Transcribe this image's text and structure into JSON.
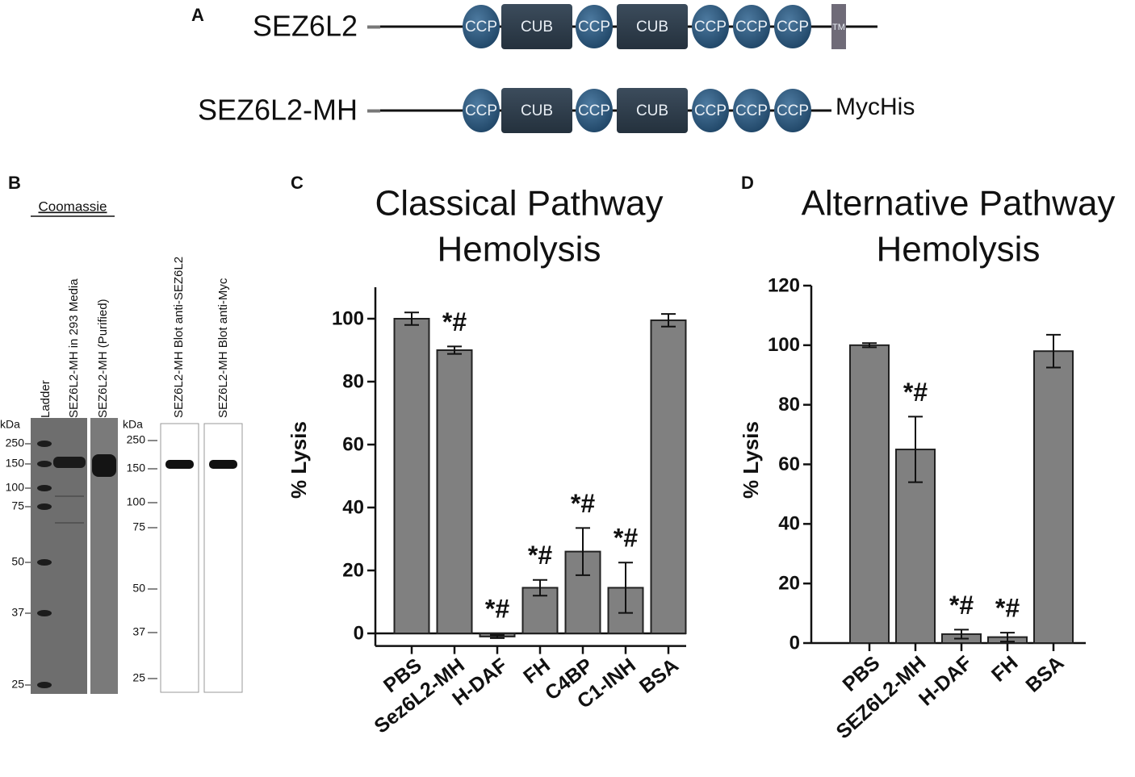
{
  "panel_a": {
    "label": "A",
    "constructs": [
      {
        "name": "SEZ6L2",
        "domains": [
          "CCP",
          "CUB",
          "CCP",
          "CUB",
          "CCP",
          "CCP",
          "CCP",
          "TM"
        ]
      },
      {
        "name": "SEZ6L2-MH",
        "domains": [
          "CCP",
          "CUB",
          "CCP",
          "CUB",
          "CCP",
          "CCP",
          "CCP"
        ],
        "tag": "MycHis"
      }
    ]
  },
  "panel_b": {
    "label": "B",
    "stain": "Coomassie",
    "unit": "kDa",
    "lanes": [
      "Ladder",
      "SEZ6L2-MH in 293 Media",
      "SEZ6L2-MH (Purified)",
      "SEZ6L2-MH Blot anti-SEZ6L2",
      "SEZ6L2-MH Blot anti-Myc"
    ],
    "gel_markers": [
      250,
      150,
      100,
      75,
      50,
      37,
      25
    ],
    "blot_markers": [
      250,
      150,
      100,
      75,
      50,
      37,
      25
    ]
  },
  "chart_data": [
    {
      "type": "bar",
      "panel": "C",
      "title": [
        "Classical Pathway",
        "Hemolysis"
      ],
      "y_label": "% Lysis",
      "categories": [
        "PBS",
        "Sez6L2-MH",
        "H-DAF",
        "FH",
        "C4BP",
        "C1-INH",
        "BSA"
      ],
      "values": [
        100,
        90,
        -1,
        14.5,
        26,
        14.5,
        99.5
      ],
      "errors": [
        2,
        1.2,
        0.5,
        2.5,
        7.5,
        8,
        2
      ],
      "annotations": [
        null,
        "*#",
        "*#",
        "*#",
        "*#",
        "*#",
        null
      ],
      "color": "#808080",
      "ylim": [
        -4,
        110
      ],
      "yticks": [
        0,
        20,
        40,
        60,
        80,
        100
      ]
    },
    {
      "type": "bar",
      "panel": "D",
      "title": [
        "Alternative Pathway",
        "Hemolysis"
      ],
      "y_label": "% Lysis",
      "categories": [
        "PBS",
        "SEZ6L2-MH",
        "H-DAF",
        "FH",
        "BSA"
      ],
      "values": [
        100,
        65,
        3,
        2,
        98
      ],
      "errors": [
        0.7,
        11,
        1.5,
        1.5,
        5.5
      ],
      "annotations": [
        null,
        "*#",
        "*#",
        "*#",
        null
      ],
      "color": "#808080",
      "ylim": [
        0,
        120
      ],
      "yticks": [
        0,
        20,
        40,
        60,
        80,
        100,
        120
      ]
    }
  ]
}
